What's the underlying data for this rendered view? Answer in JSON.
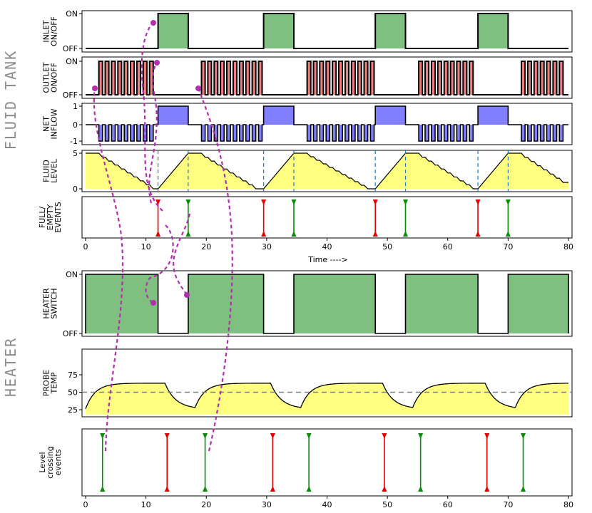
{
  "chart_data": {
    "type": "line",
    "section_labels": {
      "top": "FLUID TANK",
      "bottom": "HEATER"
    },
    "x_axis": {
      "min": 0,
      "max": 80,
      "ticks": [
        0,
        10,
        20,
        30,
        40,
        50,
        60,
        70,
        80
      ],
      "tick_labels": [
        "0",
        "10",
        "20",
        "30",
        "40",
        "50",
        "60",
        "70",
        "80"
      ],
      "label": "Time ---->"
    },
    "inlet_periods": [
      [
        12,
        17
      ],
      [
        29.5,
        34.5
      ],
      [
        48,
        53
      ],
      [
        65,
        70
      ]
    ],
    "outlet_pulse_windows": [
      [
        0,
        12
      ],
      [
        17,
        29.5
      ],
      [
        34.5,
        48
      ],
      [
        53,
        65
      ],
      [
        70,
        80
      ]
    ],
    "empty_times": [
      12,
      29.5,
      48,
      65
    ],
    "full_times": [
      17,
      34.5,
      53,
      70
    ],
    "level_crossing": {
      "up_times": [
        2.8,
        19.8,
        37,
        55.5,
        72.5
      ],
      "down_times": [
        13.5,
        31,
        49.5,
        66.5
      ]
    },
    "temp_reference": 50,
    "panels": [
      {
        "id": "inlet",
        "ylabel": [
          "INLET",
          "ON/OFF"
        ],
        "ytick_labels": [
          "ON",
          "OFF"
        ],
        "color": "#7fbf7f"
      },
      {
        "id": "outlet",
        "ylabel": [
          "OUTLET",
          "ON/OFF"
        ],
        "ytick_labels": [
          "ON",
          "OFF"
        ],
        "color": "#f08080"
      },
      {
        "id": "net",
        "ylabel": [
          "NET",
          "INFLOW"
        ],
        "ytick_labels": [
          "1",
          "0",
          "-1"
        ],
        "color": "#8080ff"
      },
      {
        "id": "level",
        "ylabel": [
          "FLUID",
          "LEVEL"
        ],
        "ytick_labels": [
          "5",
          "0"
        ],
        "color": "#ffff80"
      },
      {
        "id": "events",
        "ylabel": [
          "FULL/",
          "EMPTY",
          "EVENTS"
        ],
        "ytick_labels": []
      },
      {
        "id": "heater",
        "ylabel": [
          "HEATER",
          "SWITCH"
        ],
        "ytick_labels": [
          "ON",
          "OFF"
        ],
        "color": "#7fbf7f"
      },
      {
        "id": "probe",
        "ylabel": [
          "PROBE",
          "TEMP"
        ],
        "ytick_labels": [
          "75",
          "50",
          "25"
        ],
        "color": "#ffff80"
      },
      {
        "id": "crossing",
        "ylabel": [
          "Level",
          "crossing",
          "events"
        ],
        "ytick_labels": []
      }
    ]
  }
}
